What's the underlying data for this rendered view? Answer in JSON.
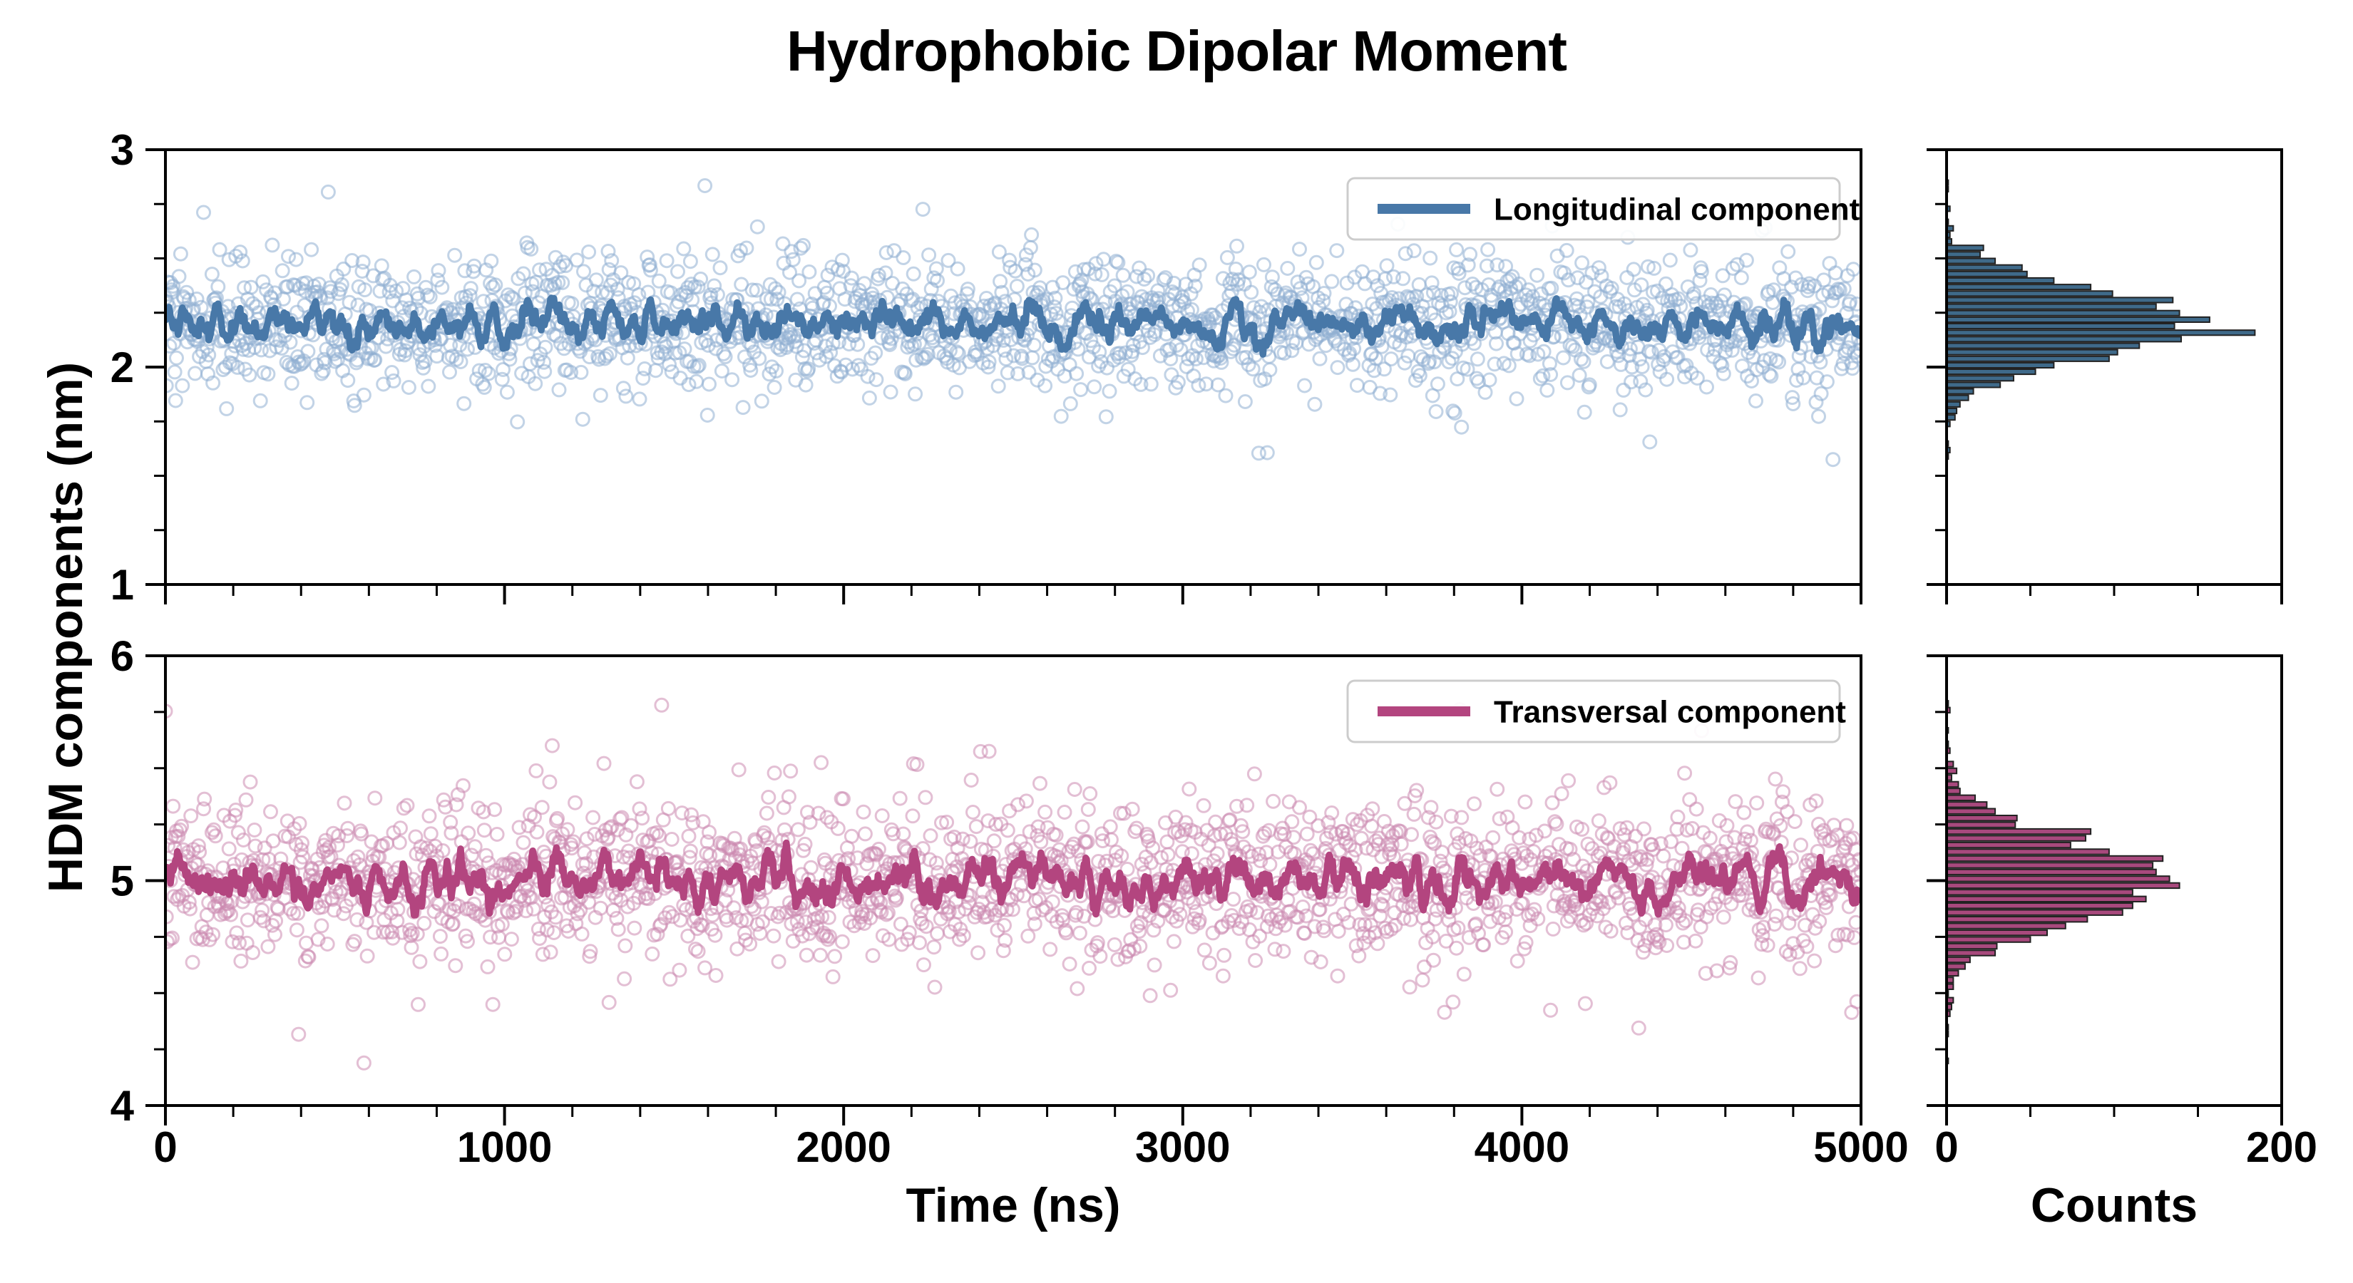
{
  "title": "Hydrophobic Dipolar Moment",
  "xlabel": "Time (ns)",
  "ylabel": "HDM components (nm)",
  "counts_label": "Counts",
  "chart_data": [
    {
      "type": "scatter",
      "name": "Longitudinal component",
      "legend_label": "Longitudinal component",
      "color_line": "#4878a8",
      "color_scatter": "#8fafd2",
      "color_hist": "#3f6a8a",
      "hist_edge": "#222222",
      "x_range": [
        0,
        5000
      ],
      "y_range": [
        1,
        3
      ],
      "x_ticks": [
        0,
        1000,
        2000,
        3000,
        4000,
        5000
      ],
      "y_ticks": [
        1,
        2,
        3
      ],
      "minor_x_step": 200,
      "minor_y_step": 0.25,
      "mean": 2.2,
      "std": 0.155,
      "n_points": 2000,
      "line_window": 11,
      "hist_bin_width": 0.03,
      "hist_x_range": [
        0,
        200
      ],
      "hist_x_ticks": [
        0,
        200
      ],
      "hist_minor_x_step": 50,
      "seed": 42
    },
    {
      "type": "scatter",
      "name": "Transversal component",
      "legend_label": "Transversal component",
      "color_line": "#b3457f",
      "color_scatter": "#cc8bb0",
      "color_hist": "#a8497d",
      "hist_edge": "#222222",
      "x_range": [
        0,
        5000
      ],
      "y_range": [
        4,
        6
      ],
      "x_ticks": [
        0,
        1000,
        2000,
        3000,
        4000,
        5000
      ],
      "y_ticks": [
        4,
        5,
        6
      ],
      "minor_x_step": 200,
      "minor_y_step": 0.25,
      "mean": 5.0,
      "std": 0.17,
      "n_points": 2000,
      "line_window": 11,
      "hist_bin_width": 0.03,
      "hist_x_range": [
        0,
        200
      ],
      "hist_x_ticks": [
        0,
        200
      ],
      "hist_minor_x_step": 50,
      "seed": 7
    }
  ]
}
